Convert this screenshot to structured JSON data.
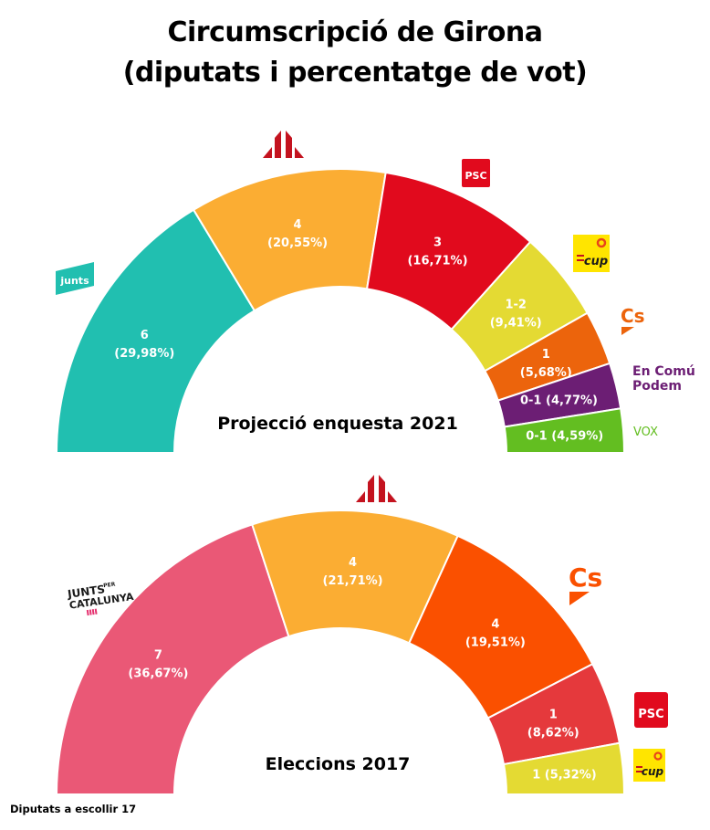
{
  "title": {
    "line1": "Circumscripció de Girona",
    "line2": "(diputats i percentatge de vot)"
  },
  "footnote": "Diputats a escollir 17",
  "chart_data": [
    {
      "type": "pie",
      "subtype": "half-donut",
      "title": "Projecció enquesta 2021",
      "total_seats": 17,
      "slices": [
        {
          "party": "Junts",
          "logo": "junts-logo",
          "seats": "6",
          "pct": 29.98,
          "pct_label": "29,98%",
          "label_style": "two-line",
          "color": "#21BFB0"
        },
        {
          "party": "ERC",
          "logo": "erc-logo",
          "seats": "4",
          "pct": 20.55,
          "pct_label": "20,55%",
          "label_style": "two-line",
          "color": "#FBAD33"
        },
        {
          "party": "PSC",
          "logo": "psc-logo",
          "seats": "3",
          "pct": 16.71,
          "pct_label": "16,71%",
          "label_style": "two-line",
          "color": "#E10A1D"
        },
        {
          "party": "CUP",
          "logo": "cup-logo",
          "seats": "1-2",
          "pct": 9.41,
          "pct_label": "9,41%",
          "label_style": "two-line",
          "color": "#E4DA33"
        },
        {
          "party": "Cs",
          "logo": "cs-logo",
          "seats": "1",
          "pct": 5.68,
          "pct_label": "5,68%",
          "label_style": "two-line",
          "color": "#EC640C"
        },
        {
          "party": "En Comú Podem",
          "logo": "en-comu-podem-logo",
          "seats": "0-1",
          "pct": 4.77,
          "pct_label": "4,77%",
          "label_style": "one-line",
          "color": "#6C1E74"
        },
        {
          "party": "VOX",
          "logo": "vox-logo",
          "seats": "0-1",
          "pct": 4.59,
          "pct_label": "4,59%",
          "label_style": "one-line",
          "color": "#63BE21"
        }
      ]
    },
    {
      "type": "pie",
      "subtype": "half-donut",
      "title": "Eleccions 2017",
      "total_seats": 17,
      "slices": [
        {
          "party": "Junts per Catalunya",
          "logo": "junts-per-catalunya-logo",
          "seats": "7",
          "pct": 36.67,
          "pct_label": "36,67%",
          "label_style": "two-line",
          "color": "#EA5876"
        },
        {
          "party": "ERC",
          "logo": "erc-logo",
          "seats": "4",
          "pct": 21.71,
          "pct_label": "21,71%",
          "label_style": "two-line",
          "color": "#FBAD33"
        },
        {
          "party": "Cs",
          "logo": "cs-logo",
          "seats": "4",
          "pct": 19.51,
          "pct_label": "19,51%",
          "label_style": "two-line",
          "color": "#FA5000"
        },
        {
          "party": "PSC",
          "logo": "psc-logo",
          "seats": "1",
          "pct": 8.62,
          "pct_label": "8,62%",
          "label_style": "two-line",
          "color": "#E5393C"
        },
        {
          "party": "CUP",
          "logo": "cup-logo",
          "seats": "1",
          "pct": 5.32,
          "pct_label": "5,32%",
          "label_style": "one-line",
          "color": "#E4DA33"
        }
      ]
    }
  ],
  "logos": {
    "junts": "junts",
    "psc": "PSC",
    "cup": "cup",
    "cs": "Cs",
    "ecp_line1": "En Comú",
    "ecp_line2": "Podem",
    "vox": "VOX",
    "jxcat_line1": "JUNTS",
    "jxcat_per": "PER",
    "jxcat_line2": "CATALUNYA"
  },
  "logo_colors": {
    "junts": "#21BFB0",
    "erc": "#C4131F",
    "psc": "#E10A1D",
    "cup_bg": "#FFE500",
    "cs": "#EC640C",
    "ecp": "#6C1E74",
    "vox": "#63BE21",
    "jxcat_bars": "#E5316F"
  }
}
